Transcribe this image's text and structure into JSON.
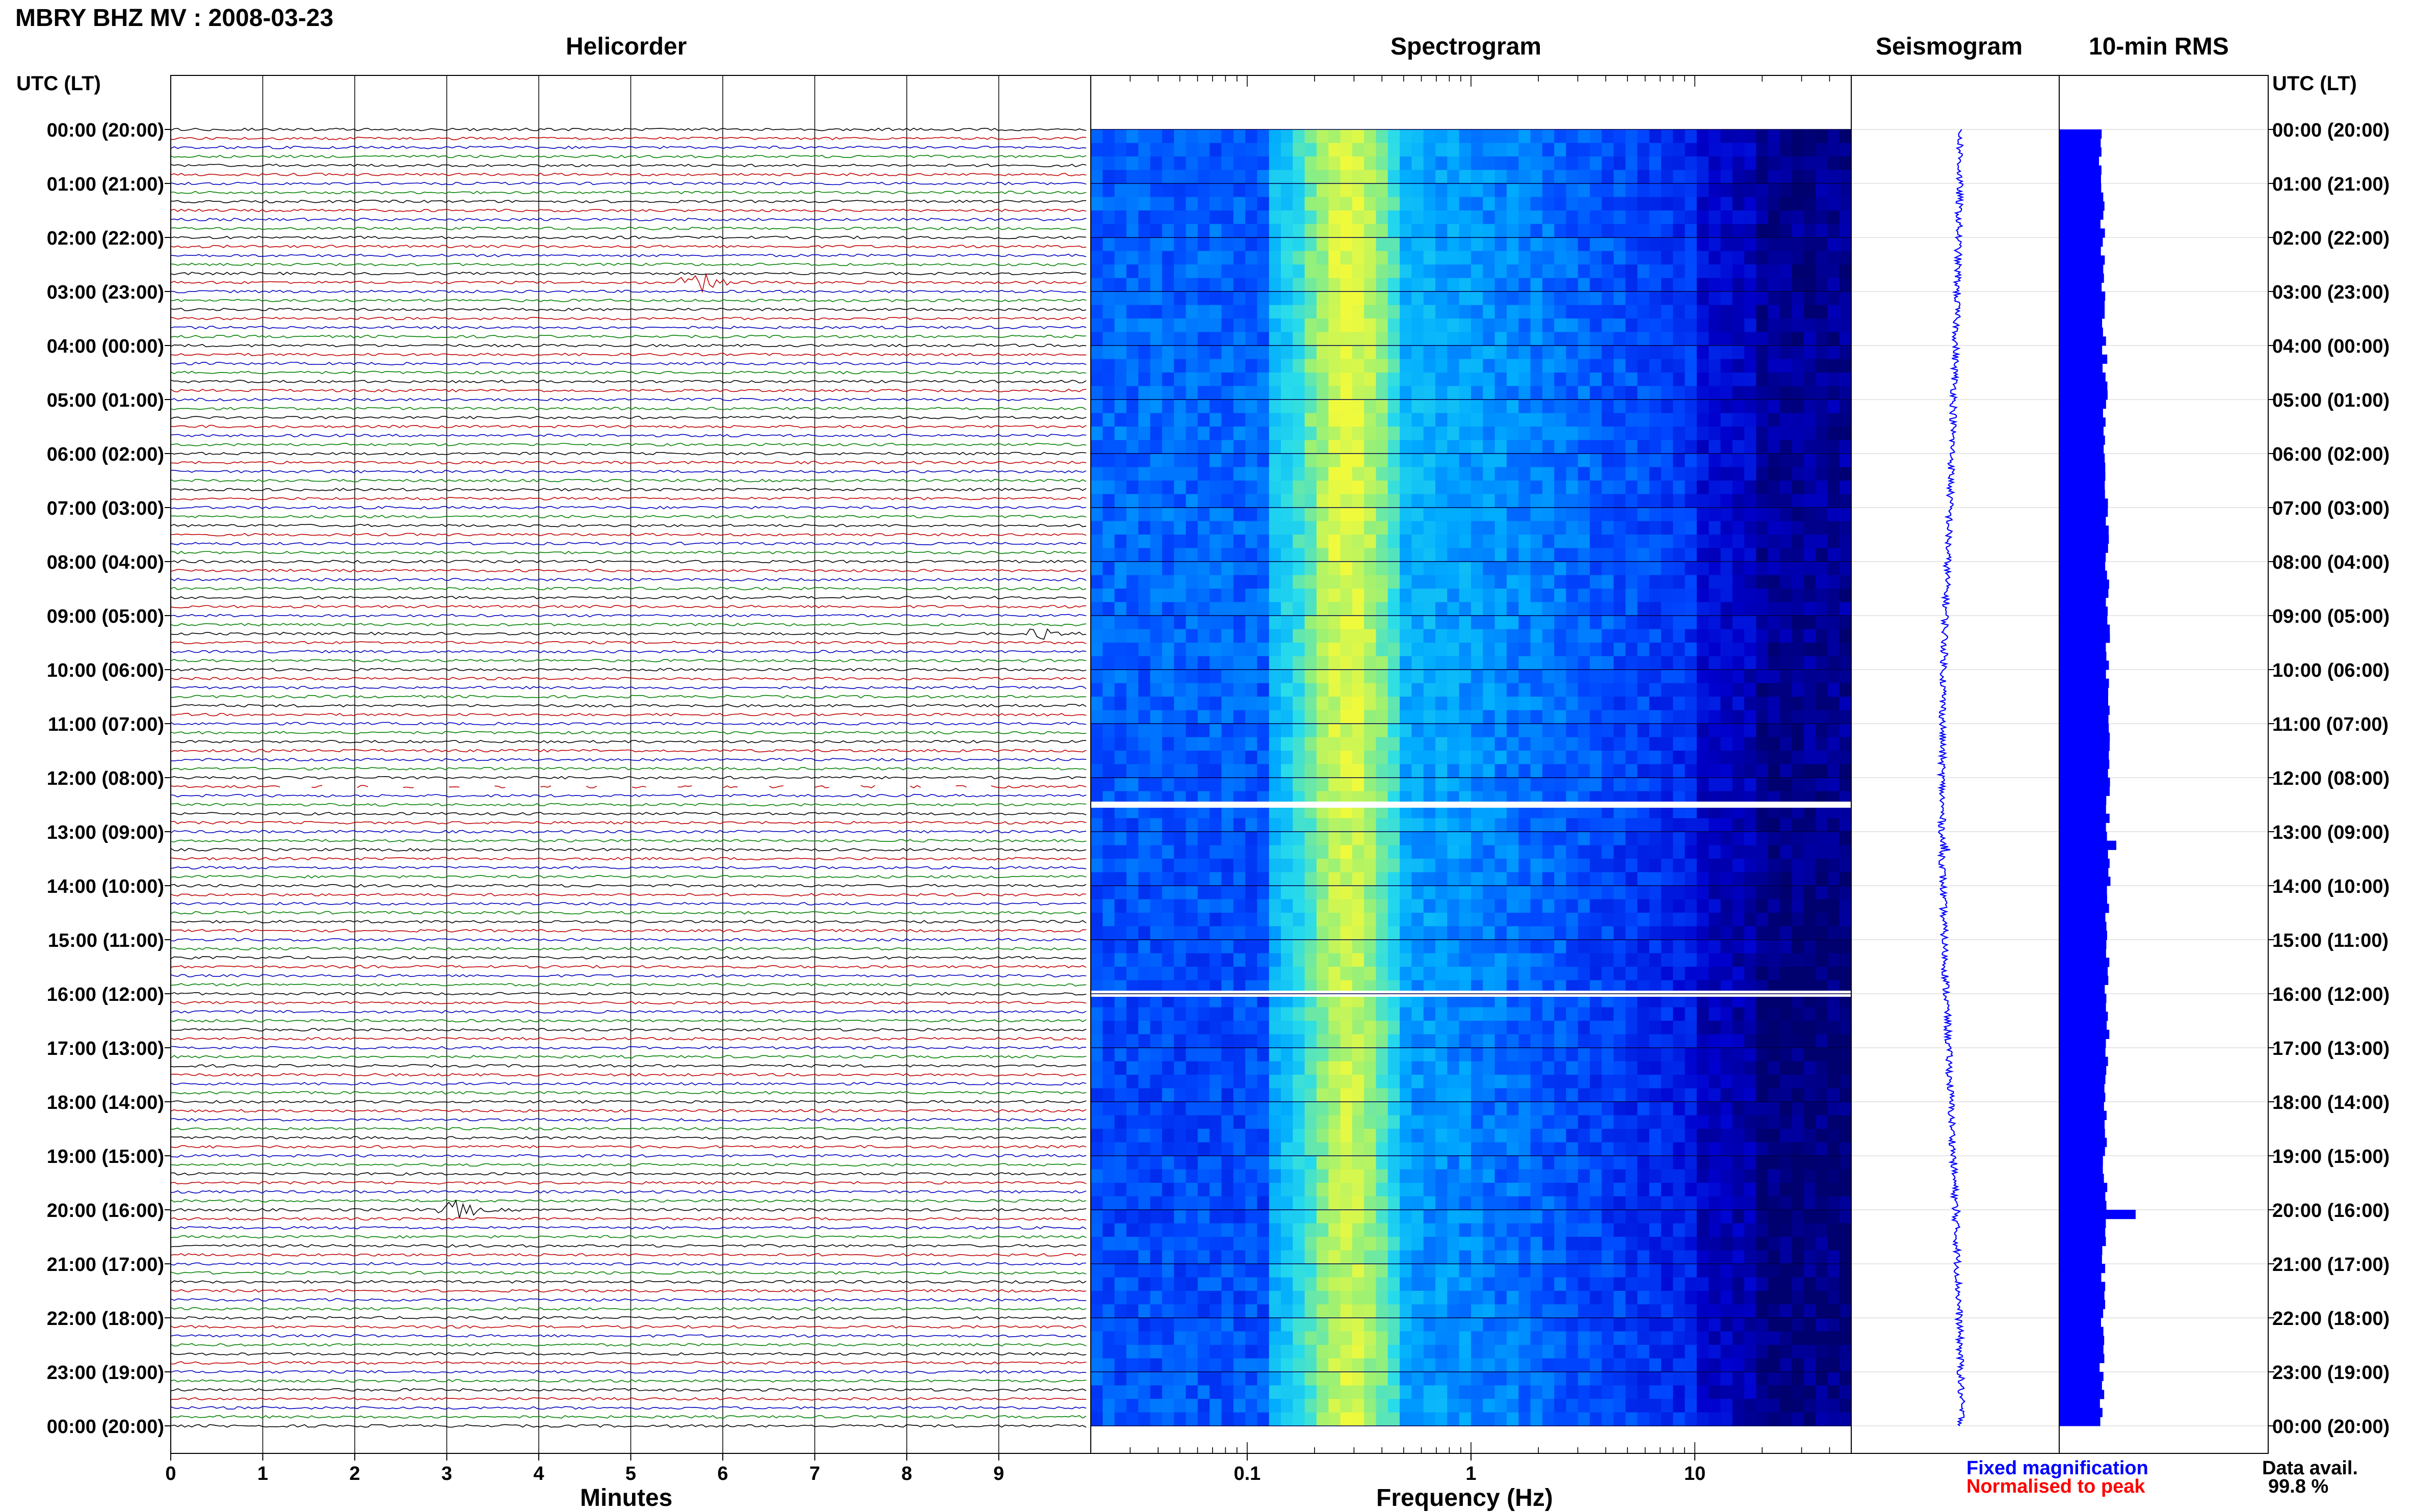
{
  "page_title": "MBRY BHZ MV : 2008-03-23",
  "panels": {
    "helicorder": "Helicorder",
    "spectrogram": "Spectrogram",
    "seismogram": "Seismogram",
    "rms": "10-min RMS"
  },
  "time_axis_label": "UTC (LT)",
  "hour_labels": [
    "00:00 (20:00)",
    "01:00 (21:00)",
    "02:00 (22:00)",
    "03:00 (23:00)",
    "04:00 (00:00)",
    "05:00 (01:00)",
    "06:00 (02:00)",
    "07:00 (03:00)",
    "08:00 (04:00)",
    "09:00 (05:00)",
    "10:00 (06:00)",
    "11:00 (07:00)",
    "12:00 (08:00)",
    "13:00 (09:00)",
    "14:00 (10:00)",
    "15:00 (11:00)",
    "16:00 (12:00)",
    "17:00 (13:00)",
    "18:00 (14:00)",
    "19:00 (15:00)",
    "20:00 (16:00)",
    "21:00 (17:00)",
    "22:00 (18:00)",
    "23:00 (19:00)",
    "00:00 (20:00)"
  ],
  "legend": {
    "fixed": "Fixed magnification",
    "normalised": "Normalised to peak",
    "data_avail_label": "Data avail.",
    "data_avail_value": "99.8 %"
  },
  "colors": {
    "fixed": "#0000ff",
    "normalised": "#ff0000",
    "trace_cycle": [
      "#000000",
      "#c00000",
      "#0000c0",
      "#008000"
    ]
  },
  "chart_data": [
    {
      "type": "line",
      "name": "helicorder",
      "xlabel": "Minutes",
      "xlim": [
        0,
        10
      ],
      "xticks": [
        0,
        1,
        2,
        3,
        4,
        5,
        6,
        7,
        8,
        9
      ],
      "lines_per_hour": 6,
      "minutes_per_line": 10,
      "events": [
        {
          "line": 17,
          "start_min": 5.5,
          "end_min": 6.5
        },
        {
          "line": 56,
          "start_min": 9.3,
          "end_min": 9.9
        },
        {
          "line": 120,
          "start_min": 2.9,
          "end_min": 3.8
        }
      ],
      "gaps": [
        {
          "line": 73,
          "start_min": 1.2,
          "end_min": 8.9
        }
      ]
    },
    {
      "type": "heatmap",
      "name": "spectrogram",
      "xlabel": "Frequency (Hz)",
      "xscale": "log",
      "xlim": [
        0.02,
        50
      ],
      "xticks": [
        0.1,
        1,
        10
      ],
      "xticklabels": [
        "0.1",
        "1",
        "10"
      ],
      "gaps_hours": [
        12.5,
        16.0
      ]
    },
    {
      "type": "line",
      "name": "seismogram",
      "xlabel": ""
    },
    {
      "type": "bar",
      "name": "10-min RMS",
      "xlabel": ""
    }
  ]
}
